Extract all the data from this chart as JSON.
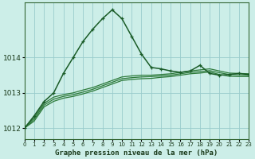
{
  "title": "Graphe pression niveau de la mer (hPa)",
  "background_color": "#cceee8",
  "plot_bg": "#cceee8",
  "grid_color": "#99cccc",
  "line_color_main": "#1a5c28",
  "line_color_smooth": "#2d7a3a",
  "border_color": "#336633",
  "x_labels": [
    "0",
    "1",
    "2",
    "3",
    "4",
    "5",
    "6",
    "7",
    "8",
    "9",
    "10",
    "11",
    "12",
    "13",
    "14",
    "15",
    "16",
    "17",
    "18",
    "19",
    "20",
    "21",
    "22",
    "23"
  ],
  "ylim": [
    1011.7,
    1015.55
  ],
  "yticks": [
    1012,
    1013,
    1014
  ],
  "series1": [
    1012.0,
    1012.35,
    1012.75,
    1013.0,
    1013.55,
    1014.0,
    1014.45,
    1014.8,
    1015.1,
    1015.35,
    1015.1,
    1014.6,
    1014.1,
    1013.72,
    1013.68,
    1013.62,
    1013.58,
    1013.62,
    1013.78,
    1013.55,
    1013.5,
    1013.52,
    1013.55,
    1013.52
  ],
  "series2": [
    1012.0,
    1012.3,
    1012.7,
    1012.88,
    1012.95,
    1013.0,
    1013.08,
    1013.15,
    1013.25,
    1013.35,
    1013.45,
    1013.48,
    1013.5,
    1013.5,
    1013.52,
    1013.54,
    1013.58,
    1013.62,
    1013.65,
    1013.68,
    1013.62,
    1013.56,
    1013.55,
    1013.54
  ],
  "series3": [
    1012.0,
    1012.25,
    1012.65,
    1012.82,
    1012.9,
    1012.95,
    1013.02,
    1013.1,
    1013.2,
    1013.3,
    1013.4,
    1013.43,
    1013.45,
    1013.46,
    1013.48,
    1013.5,
    1013.54,
    1013.58,
    1013.6,
    1013.63,
    1013.57,
    1013.52,
    1013.51,
    1013.5
  ],
  "series4": [
    1012.0,
    1012.2,
    1012.6,
    1012.76,
    1012.85,
    1012.9,
    1012.97,
    1013.05,
    1013.15,
    1013.25,
    1013.35,
    1013.38,
    1013.4,
    1013.41,
    1013.44,
    1013.46,
    1013.5,
    1013.54,
    1013.56,
    1013.59,
    1013.52,
    1013.47,
    1013.46,
    1013.46
  ]
}
